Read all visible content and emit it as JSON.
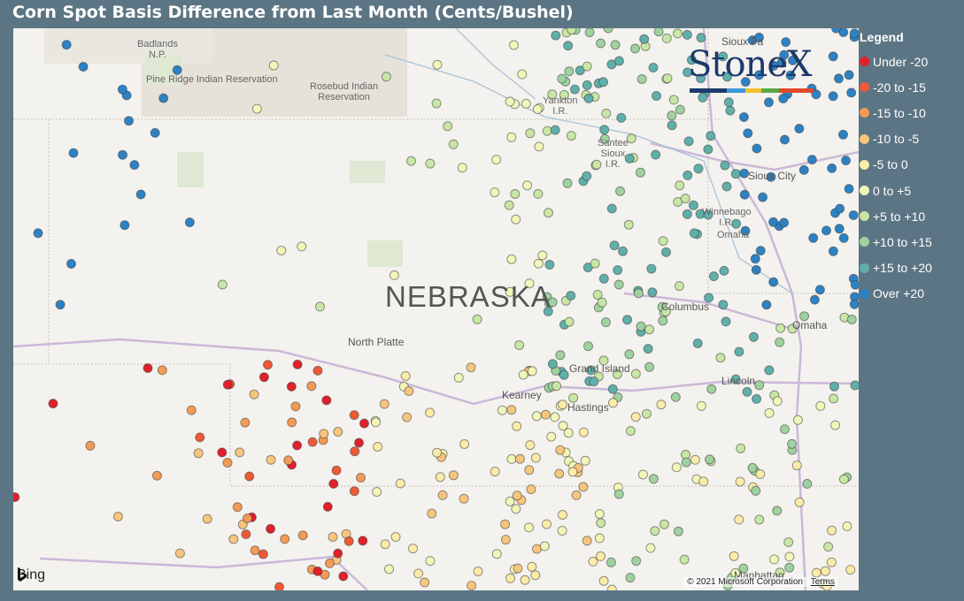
{
  "title": "Corn Spot Basis Difference from Last Month (Cents/Bushel)",
  "legend": {
    "title": "Legend",
    "items": [
      {
        "label": "Under -20",
        "color": "#e0202a"
      },
      {
        "label": "-20 to -15",
        "color": "#ef5a35"
      },
      {
        "label": "-15 to -10",
        "color": "#f39a55"
      },
      {
        "label": "-10 to -5",
        "color": "#f8c57e"
      },
      {
        "label": "-5 to 0",
        "color": "#fbeba8"
      },
      {
        "label": "0 to +5",
        "color": "#f0f7b8"
      },
      {
        "label": "+5 to +10",
        "color": "#c8e7a4"
      },
      {
        "label": "+10 to +15",
        "color": "#9fd29f"
      },
      {
        "label": "+15 to +20",
        "color": "#5fb0aa"
      },
      {
        "label": "Over +20",
        "color": "#2c82c4"
      }
    ]
  },
  "map": {
    "state_label": "NEBRASKA",
    "places": {
      "badlands": "Badlands\nN.P.",
      "pine_ridge": "Pine Ridge Indian Reservation",
      "rosebud": "Rosebud Indian\nReservation",
      "yankton": "Yankton\nI.R.",
      "santee": "Santee\nSioux\nI.R.",
      "winnebago": "Winnebago\nI.R.",
      "omaha_ir": "Omaha",
      "north_platte": "North Platte",
      "grand_island": "Grand Island",
      "kearney": "Kearney",
      "hastings": "Hastings",
      "columbus": "Columbus",
      "omaha": "Omaha",
      "lincoln": "Lincoln",
      "sioux_city": "Sioux City",
      "sioux_falls": "Sioux Fa",
      "manhattan": "Manhattan"
    },
    "logo": "StoneX",
    "attribution": "Bing",
    "copyright": "© 2021 Microsoft Corporation",
    "terms": "Terms"
  }
}
